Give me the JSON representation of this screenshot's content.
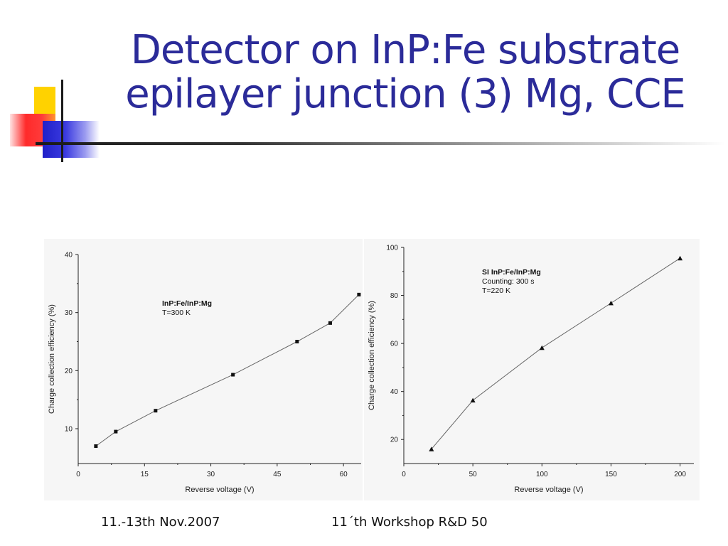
{
  "slide": {
    "title_line1": "Detector on InP:Fe substrate",
    "title_line2": "epilayer junction (3) Mg, CCE",
    "footer_date": "11.-13th Nov.2007",
    "footer_event": "11´th Workshop R&D 50",
    "title_color": "#2b2b99"
  },
  "chart_data": [
    {
      "type": "line",
      "xlabel": "Reverse voltage (V)",
      "ylabel": "Charge collection efficiency (%)",
      "xlim": [
        0,
        64
      ],
      "ylim": [
        4,
        40
      ],
      "xticks": [
        0,
        15,
        30,
        45,
        60
      ],
      "yticks": [
        10,
        20,
        30,
        40
      ],
      "legend": [
        "InP:Fe/InP:Mg",
        "T=300 K"
      ],
      "legend_position": "top-center",
      "marker": "square",
      "grid": false,
      "series": [
        {
          "x": [
            4,
            8.5,
            17.5,
            35,
            49.5,
            57,
            63.5
          ],
          "y": [
            7,
            9.5,
            13.1,
            19.3,
            25,
            28.2,
            33.1
          ]
        }
      ]
    },
    {
      "type": "line",
      "xlabel": "Reverse voltage (V)",
      "ylabel": "Charge collection efficiency (%)",
      "xlim": [
        0,
        210
      ],
      "ylim": [
        10,
        100
      ],
      "xticks": [
        0,
        50,
        100,
        150,
        200
      ],
      "yticks": [
        20,
        40,
        60,
        80,
        100
      ],
      "legend": [
        "SI InP:Fe/InP:Mg",
        "Counting: 300 s",
        "T=220 K"
      ],
      "legend_position": "top-center",
      "marker": "triangle",
      "grid": false,
      "series": [
        {
          "x": [
            20,
            50,
            100,
            150,
            200
          ],
          "y": [
            16,
            36.3,
            58.2,
            76.8,
            95.5
          ]
        }
      ]
    }
  ]
}
